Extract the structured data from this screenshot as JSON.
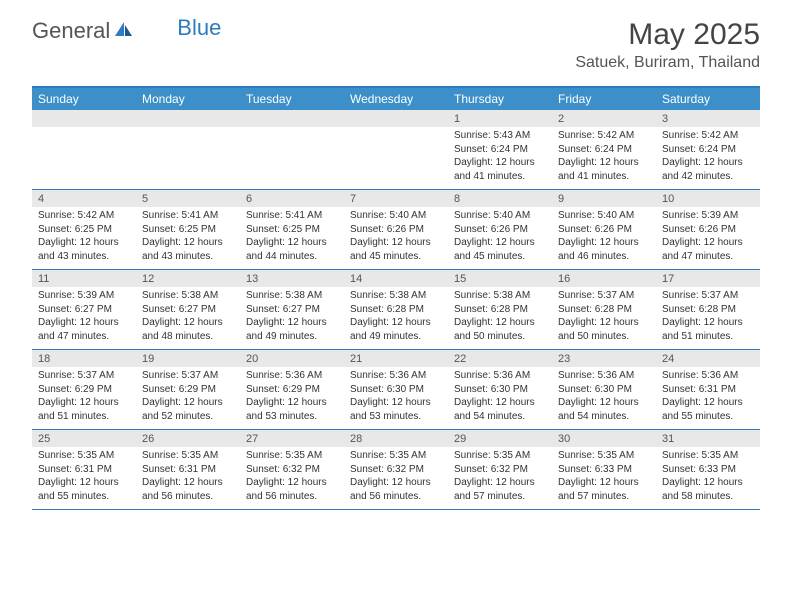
{
  "logo": {
    "text_general": "General",
    "text_blue": "Blue"
  },
  "title": "May 2025",
  "location": "Satuek, Buriram, Thailand",
  "colors": {
    "header_bg": "#3d8fc9",
    "border": "#2f7bbf",
    "date_bg": "#e8e8e8",
    "text": "#333333"
  },
  "day_headers": [
    "Sunday",
    "Monday",
    "Tuesday",
    "Wednesday",
    "Thursday",
    "Friday",
    "Saturday"
  ],
  "weeks": [
    [
      {
        "empty": true
      },
      {
        "empty": true
      },
      {
        "empty": true
      },
      {
        "empty": true
      },
      {
        "date": "1",
        "sunrise": "Sunrise: 5:43 AM",
        "sunset": "Sunset: 6:24 PM",
        "daylight": "Daylight: 12 hours and 41 minutes."
      },
      {
        "date": "2",
        "sunrise": "Sunrise: 5:42 AM",
        "sunset": "Sunset: 6:24 PM",
        "daylight": "Daylight: 12 hours and 41 minutes."
      },
      {
        "date": "3",
        "sunrise": "Sunrise: 5:42 AM",
        "sunset": "Sunset: 6:24 PM",
        "daylight": "Daylight: 12 hours and 42 minutes."
      }
    ],
    [
      {
        "date": "4",
        "sunrise": "Sunrise: 5:42 AM",
        "sunset": "Sunset: 6:25 PM",
        "daylight": "Daylight: 12 hours and 43 minutes."
      },
      {
        "date": "5",
        "sunrise": "Sunrise: 5:41 AM",
        "sunset": "Sunset: 6:25 PM",
        "daylight": "Daylight: 12 hours and 43 minutes."
      },
      {
        "date": "6",
        "sunrise": "Sunrise: 5:41 AM",
        "sunset": "Sunset: 6:25 PM",
        "daylight": "Daylight: 12 hours and 44 minutes."
      },
      {
        "date": "7",
        "sunrise": "Sunrise: 5:40 AM",
        "sunset": "Sunset: 6:26 PM",
        "daylight": "Daylight: 12 hours and 45 minutes."
      },
      {
        "date": "8",
        "sunrise": "Sunrise: 5:40 AM",
        "sunset": "Sunset: 6:26 PM",
        "daylight": "Daylight: 12 hours and 45 minutes."
      },
      {
        "date": "9",
        "sunrise": "Sunrise: 5:40 AM",
        "sunset": "Sunset: 6:26 PM",
        "daylight": "Daylight: 12 hours and 46 minutes."
      },
      {
        "date": "10",
        "sunrise": "Sunrise: 5:39 AM",
        "sunset": "Sunset: 6:26 PM",
        "daylight": "Daylight: 12 hours and 47 minutes."
      }
    ],
    [
      {
        "date": "11",
        "sunrise": "Sunrise: 5:39 AM",
        "sunset": "Sunset: 6:27 PM",
        "daylight": "Daylight: 12 hours and 47 minutes."
      },
      {
        "date": "12",
        "sunrise": "Sunrise: 5:38 AM",
        "sunset": "Sunset: 6:27 PM",
        "daylight": "Daylight: 12 hours and 48 minutes."
      },
      {
        "date": "13",
        "sunrise": "Sunrise: 5:38 AM",
        "sunset": "Sunset: 6:27 PM",
        "daylight": "Daylight: 12 hours and 49 minutes."
      },
      {
        "date": "14",
        "sunrise": "Sunrise: 5:38 AM",
        "sunset": "Sunset: 6:28 PM",
        "daylight": "Daylight: 12 hours and 49 minutes."
      },
      {
        "date": "15",
        "sunrise": "Sunrise: 5:38 AM",
        "sunset": "Sunset: 6:28 PM",
        "daylight": "Daylight: 12 hours and 50 minutes."
      },
      {
        "date": "16",
        "sunrise": "Sunrise: 5:37 AM",
        "sunset": "Sunset: 6:28 PM",
        "daylight": "Daylight: 12 hours and 50 minutes."
      },
      {
        "date": "17",
        "sunrise": "Sunrise: 5:37 AM",
        "sunset": "Sunset: 6:28 PM",
        "daylight": "Daylight: 12 hours and 51 minutes."
      }
    ],
    [
      {
        "date": "18",
        "sunrise": "Sunrise: 5:37 AM",
        "sunset": "Sunset: 6:29 PM",
        "daylight": "Daylight: 12 hours and 51 minutes."
      },
      {
        "date": "19",
        "sunrise": "Sunrise: 5:37 AM",
        "sunset": "Sunset: 6:29 PM",
        "daylight": "Daylight: 12 hours and 52 minutes."
      },
      {
        "date": "20",
        "sunrise": "Sunrise: 5:36 AM",
        "sunset": "Sunset: 6:29 PM",
        "daylight": "Daylight: 12 hours and 53 minutes."
      },
      {
        "date": "21",
        "sunrise": "Sunrise: 5:36 AM",
        "sunset": "Sunset: 6:30 PM",
        "daylight": "Daylight: 12 hours and 53 minutes."
      },
      {
        "date": "22",
        "sunrise": "Sunrise: 5:36 AM",
        "sunset": "Sunset: 6:30 PM",
        "daylight": "Daylight: 12 hours and 54 minutes."
      },
      {
        "date": "23",
        "sunrise": "Sunrise: 5:36 AM",
        "sunset": "Sunset: 6:30 PM",
        "daylight": "Daylight: 12 hours and 54 minutes."
      },
      {
        "date": "24",
        "sunrise": "Sunrise: 5:36 AM",
        "sunset": "Sunset: 6:31 PM",
        "daylight": "Daylight: 12 hours and 55 minutes."
      }
    ],
    [
      {
        "date": "25",
        "sunrise": "Sunrise: 5:35 AM",
        "sunset": "Sunset: 6:31 PM",
        "daylight": "Daylight: 12 hours and 55 minutes."
      },
      {
        "date": "26",
        "sunrise": "Sunrise: 5:35 AM",
        "sunset": "Sunset: 6:31 PM",
        "daylight": "Daylight: 12 hours and 56 minutes."
      },
      {
        "date": "27",
        "sunrise": "Sunrise: 5:35 AM",
        "sunset": "Sunset: 6:32 PM",
        "daylight": "Daylight: 12 hours and 56 minutes."
      },
      {
        "date": "28",
        "sunrise": "Sunrise: 5:35 AM",
        "sunset": "Sunset: 6:32 PM",
        "daylight": "Daylight: 12 hours and 56 minutes."
      },
      {
        "date": "29",
        "sunrise": "Sunrise: 5:35 AM",
        "sunset": "Sunset: 6:32 PM",
        "daylight": "Daylight: 12 hours and 57 minutes."
      },
      {
        "date": "30",
        "sunrise": "Sunrise: 5:35 AM",
        "sunset": "Sunset: 6:33 PM",
        "daylight": "Daylight: 12 hours and 57 minutes."
      },
      {
        "date": "31",
        "sunrise": "Sunrise: 5:35 AM",
        "sunset": "Sunset: 6:33 PM",
        "daylight": "Daylight: 12 hours and 58 minutes."
      }
    ]
  ]
}
